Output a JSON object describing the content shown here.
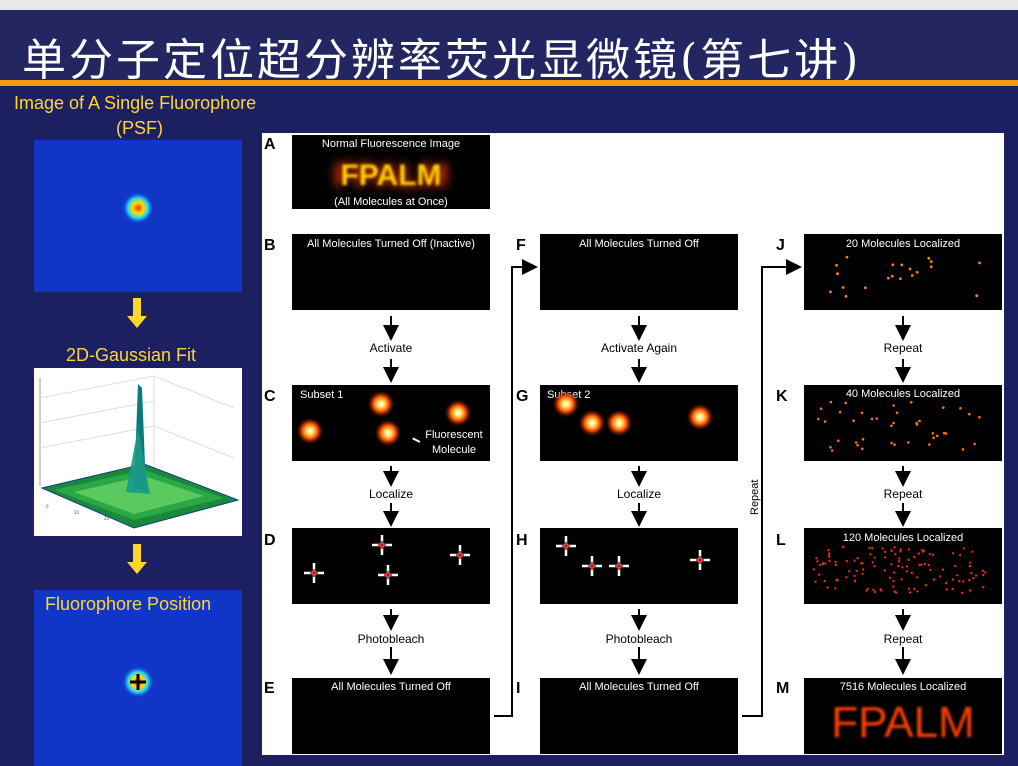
{
  "header": {
    "title": "单分子定位超分辨率荧光显微镜(第七讲)"
  },
  "left": {
    "psf_label_line1": "Image of A Single Fluorophore",
    "psf_label_line2": "(PSF)",
    "fit_label": "2D-Gaussian Fit",
    "position_label": "Fluorophore Position"
  },
  "figure": {
    "panels": [
      {
        "letter": "A",
        "caption_top": "Normal Fluorescence Image",
        "caption_bottom": "(All Molecules at Once)",
        "big_text": "FPALM"
      },
      {
        "letter": "B",
        "caption": "All Molecules Turned Off (Inactive)"
      },
      {
        "letter": "C",
        "caption": "Subset 1",
        "note_line1": "Fluorescent",
        "note_line2": "Molecule"
      },
      {
        "letter": "D"
      },
      {
        "letter": "E",
        "caption": "All Molecules Turned Off"
      },
      {
        "letter": "F",
        "caption": "All Molecules Turned Off"
      },
      {
        "letter": "G",
        "caption": "Subset 2"
      },
      {
        "letter": "H"
      },
      {
        "letter": "I",
        "caption": "All Molecules Turned Off"
      },
      {
        "letter": "J",
        "caption": "20 Molecules Localized"
      },
      {
        "letter": "K",
        "caption": "40 Molecules Localized"
      },
      {
        "letter": "L",
        "caption": "120 Molecules Localized"
      },
      {
        "letter": "M",
        "caption": "7516 Molecules Localized",
        "big_text": "FPALM"
      }
    ],
    "steps": {
      "activate": "Activate",
      "activate_again": "Activate Again",
      "localize": "Localize",
      "photobleach": "Photobleach",
      "repeat": "Repeat"
    }
  },
  "colors": {
    "background": "#1c2060",
    "accent": "#f29a1a",
    "label_yellow": "#ffd630",
    "panel_blue": "#1036c8"
  }
}
